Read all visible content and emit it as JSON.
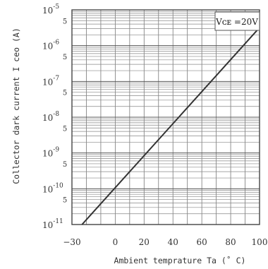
{
  "chart_data": {
    "type": "line",
    "title": "",
    "xlabel": "Ambient temprature Ta (˚ C)",
    "ylabel": "Collector dark current I ceo (A)",
    "x_ticks": [
      -30,
      0,
      20,
      40,
      60,
      80,
      100
    ],
    "x_tick_labels": [
      "−30",
      "0",
      "20",
      "40",
      "60",
      "80",
      "100"
    ],
    "xlim": [
      -30,
      100
    ],
    "yscale": "log",
    "ylim": [
      1e-11,
      1e-05
    ],
    "y_decades": [
      {
        "base": "10",
        "exp": "-5"
      },
      {
        "base": "10",
        "exp": "-6"
      },
      {
        "base": "10",
        "exp": "-7"
      },
      {
        "base": "10",
        "exp": "-8"
      },
      {
        "base": "10",
        "exp": "-9"
      },
      {
        "base": "10",
        "exp": "-10"
      },
      {
        "base": "10",
        "exp": "-11"
      }
    ],
    "y_minor_label": "5",
    "grid": true,
    "annotation": "Vᴄᴇ =20V",
    "series": [
      {
        "x": [
          -23,
          100
        ],
        "y": [
          1e-11,
          3.2e-06
        ]
      }
    ]
  }
}
